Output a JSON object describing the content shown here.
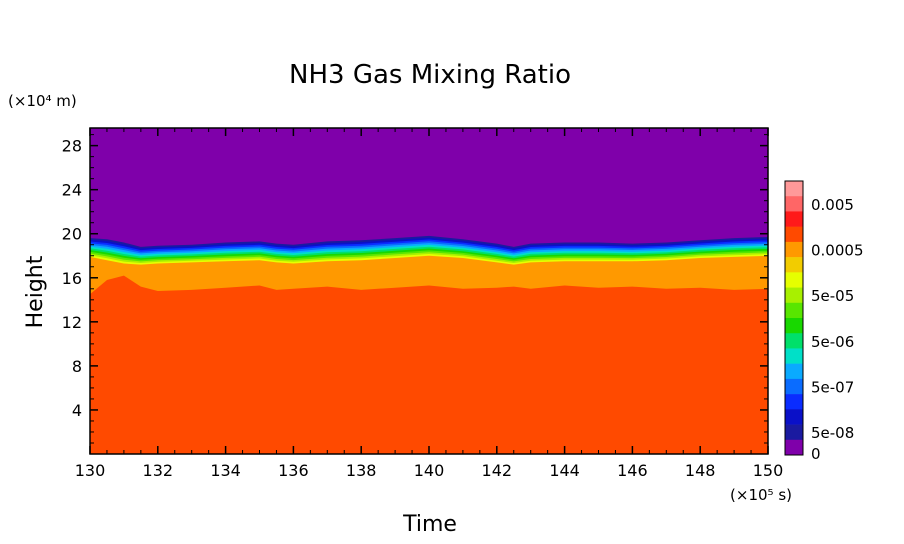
{
  "chart_data": {
    "type": "heatmap",
    "title": "NH3 Gas Mixing Ratio",
    "xlabel": "Time",
    "ylabel": "Height",
    "x_unit": "(×10⁵ s)",
    "y_unit": "(×10⁴ m)",
    "xlim": [
      130,
      150
    ],
    "ylim": [
      0,
      29.6
    ],
    "xticks": [
      130,
      132,
      134,
      136,
      138,
      140,
      142,
      144,
      146,
      148,
      150
    ],
    "yticks": [
      4,
      8,
      12,
      16,
      20,
      24,
      28
    ],
    "colorbar": {
      "labels": [
        "0.005",
        "0.0005",
        "5e-05",
        "5e-06",
        "5e-07",
        "5e-08",
        "0"
      ],
      "colors": [
        "#ff9999",
        "#ff6666",
        "#ff1a1a",
        "#ff4a00",
        "#ff9900",
        "#f2cc00",
        "#e6ff00",
        "#a8f000",
        "#58e600",
        "#18d800",
        "#00e06a",
        "#00e0c8",
        "#0aaaff",
        "#0a6cff",
        "#0a2cff",
        "#0a10c8",
        "#1a1aa0",
        "#7f00aa"
      ]
    },
    "x": [
      130,
      130.5,
      131,
      131.5,
      132,
      133,
      134,
      135,
      135.5,
      136,
      137,
      138,
      139,
      140,
      141,
      142,
      142.5,
      143,
      144,
      145,
      146,
      147,
      148,
      149,
      150
    ],
    "transition_height": [
      19.6,
      19.5,
      19.2,
      18.8,
      18.9,
      19.0,
      19.2,
      19.3,
      19.1,
      19.0,
      19.3,
      19.4,
      19.6,
      19.8,
      19.5,
      19.1,
      18.8,
      19.1,
      19.2,
      19.2,
      19.1,
      19.2,
      19.4,
      19.6,
      19.7
    ],
    "layers_below_transition": [
      {
        "level": "5e-05",
        "top_height": [
          17.9,
          17.6,
          17.3,
          17.2,
          17.3,
          17.4,
          17.5,
          17.6,
          17.4,
          17.3,
          17.5,
          17.6,
          17.8,
          18.0,
          17.8,
          17.4,
          17.2,
          17.4,
          17.5,
          17.5,
          17.5,
          17.6,
          17.8,
          17.9,
          18.0
        ]
      },
      {
        "level": "0.0005",
        "top_height": [
          14.5,
          15.8,
          16.2,
          15.2,
          14.8,
          14.9,
          15.1,
          15.3,
          14.9,
          15.0,
          15.2,
          14.9,
          15.1,
          15.3,
          15.0,
          15.1,
          15.2,
          15.0,
          15.3,
          15.1,
          15.2,
          15.0,
          15.1,
          14.9,
          15.0
        ]
      }
    ]
  }
}
